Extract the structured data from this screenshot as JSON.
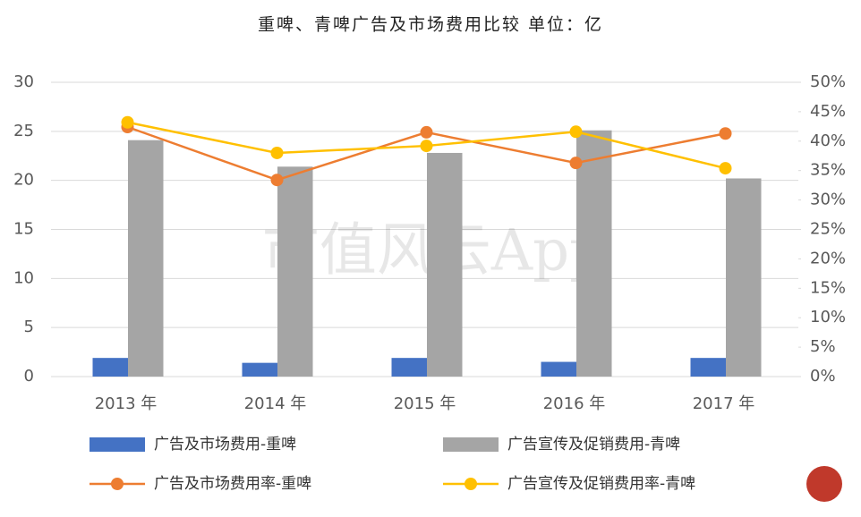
{
  "chart_data": {
    "type": "bar",
    "title": "重啤、青啤广告及市场费用比较  单位：亿",
    "watermark": "市值风云App",
    "categories": [
      "2013 年",
      "2014 年",
      "2015 年",
      "2016 年",
      "2017 年"
    ],
    "series": [
      {
        "name": "广告及市场费用-重啤",
        "type": "bar",
        "color": "#4472c4",
        "values": [
          1.9,
          1.4,
          1.9,
          1.5,
          1.9
        ]
      },
      {
        "name": "广告宣传及促销费用-青啤",
        "type": "bar",
        "color": "#a5a5a5",
        "values": [
          24.1,
          21.4,
          22.8,
          25.1,
          20.2
        ]
      },
      {
        "name": "广告及市场费用率-重啤",
        "type": "line",
        "axis": "y2",
        "color": "#ed7d31",
        "values": [
          42.4,
          33.4,
          41.5,
          36.3,
          41.3
        ]
      },
      {
        "name": "广告宣传及促销费用率-青啤",
        "type": "line",
        "axis": "y2",
        "color": "#ffc000",
        "values": [
          43.2,
          38.0,
          39.2,
          41.6,
          35.4
        ]
      }
    ],
    "ylim": [
      0,
      30
    ],
    "yticks": [
      0,
      5,
      10,
      15,
      20,
      25,
      30
    ],
    "y2lim": [
      0,
      50
    ],
    "y2ticks": [
      {
        "value": 0,
        "label": "0%"
      },
      {
        "value": 5,
        "label": "5%"
      },
      {
        "value": 10,
        "label": "10%"
      },
      {
        "value": 15,
        "label": "15%"
      },
      {
        "value": 20,
        "label": "20%"
      },
      {
        "value": 25,
        "label": "25%"
      },
      {
        "value": 30,
        "label": "30%"
      },
      {
        "value": 35,
        "label": "35%"
      },
      {
        "value": 40,
        "label": "40%"
      },
      {
        "value": 45,
        "label": "45%"
      },
      {
        "value": 50,
        "label": "50%"
      }
    ],
    "grid": true
  }
}
